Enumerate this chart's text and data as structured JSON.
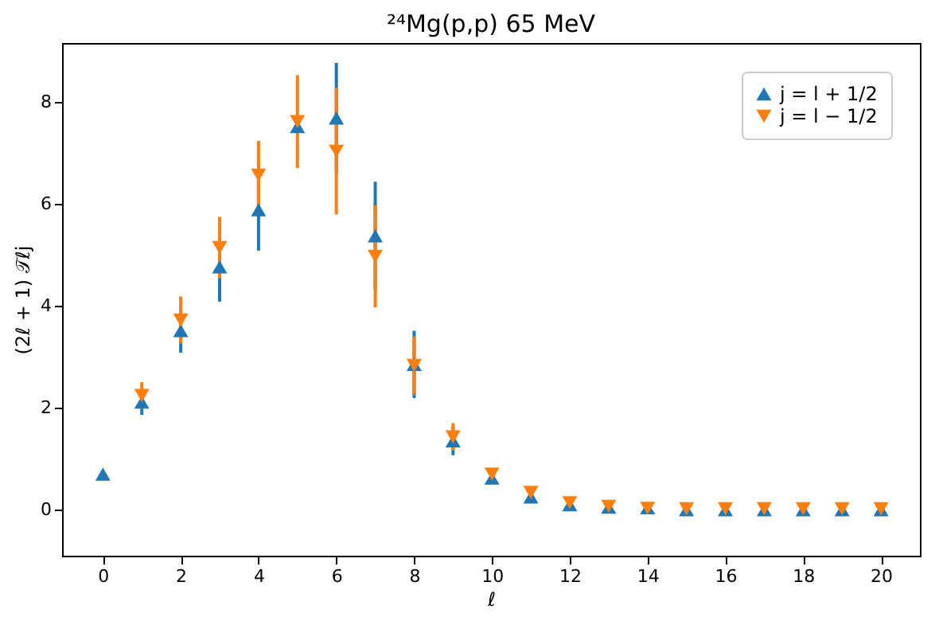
{
  "chart_data": {
    "type": "scatter",
    "title": "²⁴Mg(p,p) 65 MeV",
    "xlabel": "ℓ",
    "ylabel": "(2ℓ + 1) 𝒯ℓj",
    "x": [
      0,
      1,
      2,
      3,
      4,
      5,
      6,
      7,
      8,
      9,
      10,
      11,
      12,
      13,
      14,
      15,
      16,
      17,
      18,
      19,
      20
    ],
    "series": [
      {
        "name": "j = l + 1/2",
        "color": "#1f77b4",
        "marker": "triangle-up",
        "values": [
          0.7,
          2.11,
          3.51,
          4.76,
          5.88,
          7.51,
          7.68,
          5.37,
          2.85,
          1.35,
          0.62,
          0.25,
          0.1,
          0.05,
          0.04,
          0.0,
          0.0,
          0.0,
          0.0,
          0.0,
          0.0
        ],
        "errors": [
          null,
          0.25,
          0.43,
          0.68,
          0.8,
          null,
          1.08,
          1.06,
          0.66,
          0.28,
          null,
          null,
          null,
          null,
          null,
          null,
          null,
          null,
          null,
          null,
          null
        ]
      },
      {
        "name": "j = l − 1/2",
        "color": "#ff7f0e",
        "marker": "triangle-down",
        "x": [
          1,
          2,
          3,
          4,
          5,
          6,
          7,
          8,
          9,
          10,
          11,
          12,
          13,
          14,
          15,
          16,
          17,
          18,
          19,
          20
        ],
        "values": [
          2.24,
          3.72,
          5.14,
          6.56,
          7.61,
          7.03,
          4.97,
          2.83,
          1.43,
          0.7,
          0.34,
          0.14,
          0.07,
          0.03,
          0.02,
          0.02,
          0.02,
          0.02,
          0.02,
          0.02
        ],
        "errors": [
          0.26,
          0.46,
          0.6,
          0.67,
          0.91,
          1.24,
          1.0,
          0.57,
          0.27,
          0.1,
          null,
          null,
          null,
          null,
          null,
          null,
          null,
          null,
          null,
          null
        ]
      }
    ],
    "xlim": [
      -1.05,
      21
    ],
    "ylim": [
      -0.9,
      9.15
    ],
    "xticks": [
      0,
      2,
      4,
      6,
      8,
      10,
      12,
      14,
      16,
      18,
      20
    ],
    "yticks": [
      0,
      2,
      4,
      6,
      8
    ],
    "grid": false,
    "legend": "top right"
  }
}
